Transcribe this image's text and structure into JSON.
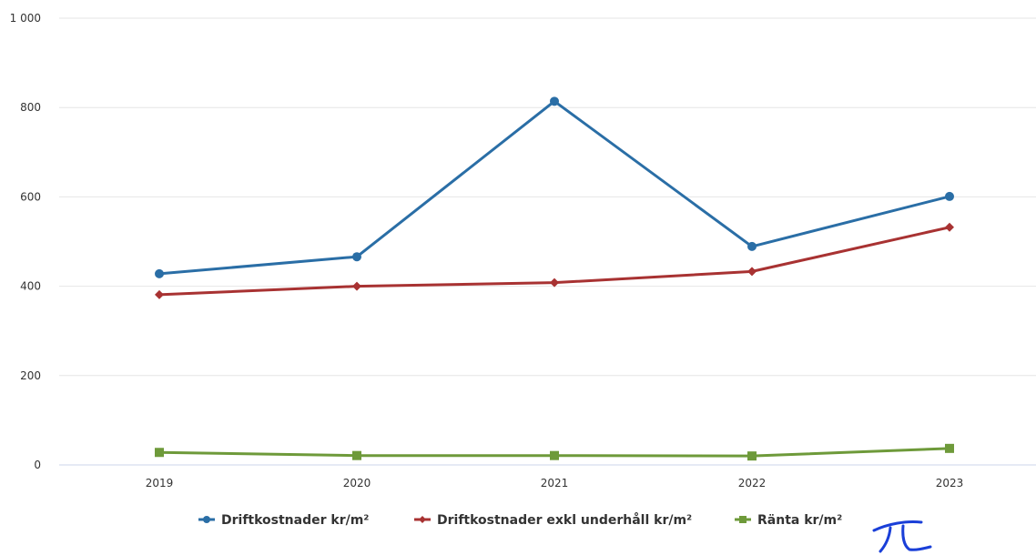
{
  "chart_data": {
    "type": "line",
    "categories": [
      "2019",
      "2020",
      "2021",
      "2022",
      "2023"
    ],
    "series": [
      {
        "name": "Driftkostnader kr/m²",
        "color": "#2a6ea6",
        "marker": "circle",
        "values": [
          428,
          466,
          814,
          489,
          601
        ]
      },
      {
        "name": "Driftkostnader exkl underhåll kr/m²",
        "color": "#a83232",
        "marker": "diamond",
        "values": [
          381,
          400,
          408,
          433,
          532
        ]
      },
      {
        "name": "Ränta kr/m²",
        "color": "#6e9a3a",
        "marker": "square",
        "values": [
          28,
          21,
          21,
          20,
          37
        ]
      }
    ],
    "ylim": [
      0,
      1000
    ],
    "yticks": [
      0,
      200,
      400,
      600,
      800,
      1000
    ],
    "ytick_labels": [
      "0",
      "200",
      "400",
      "600",
      "800",
      "1 000"
    ],
    "grid": true,
    "legend_position": "bottom-center",
    "title": "",
    "xlabel": "",
    "ylabel": ""
  }
}
